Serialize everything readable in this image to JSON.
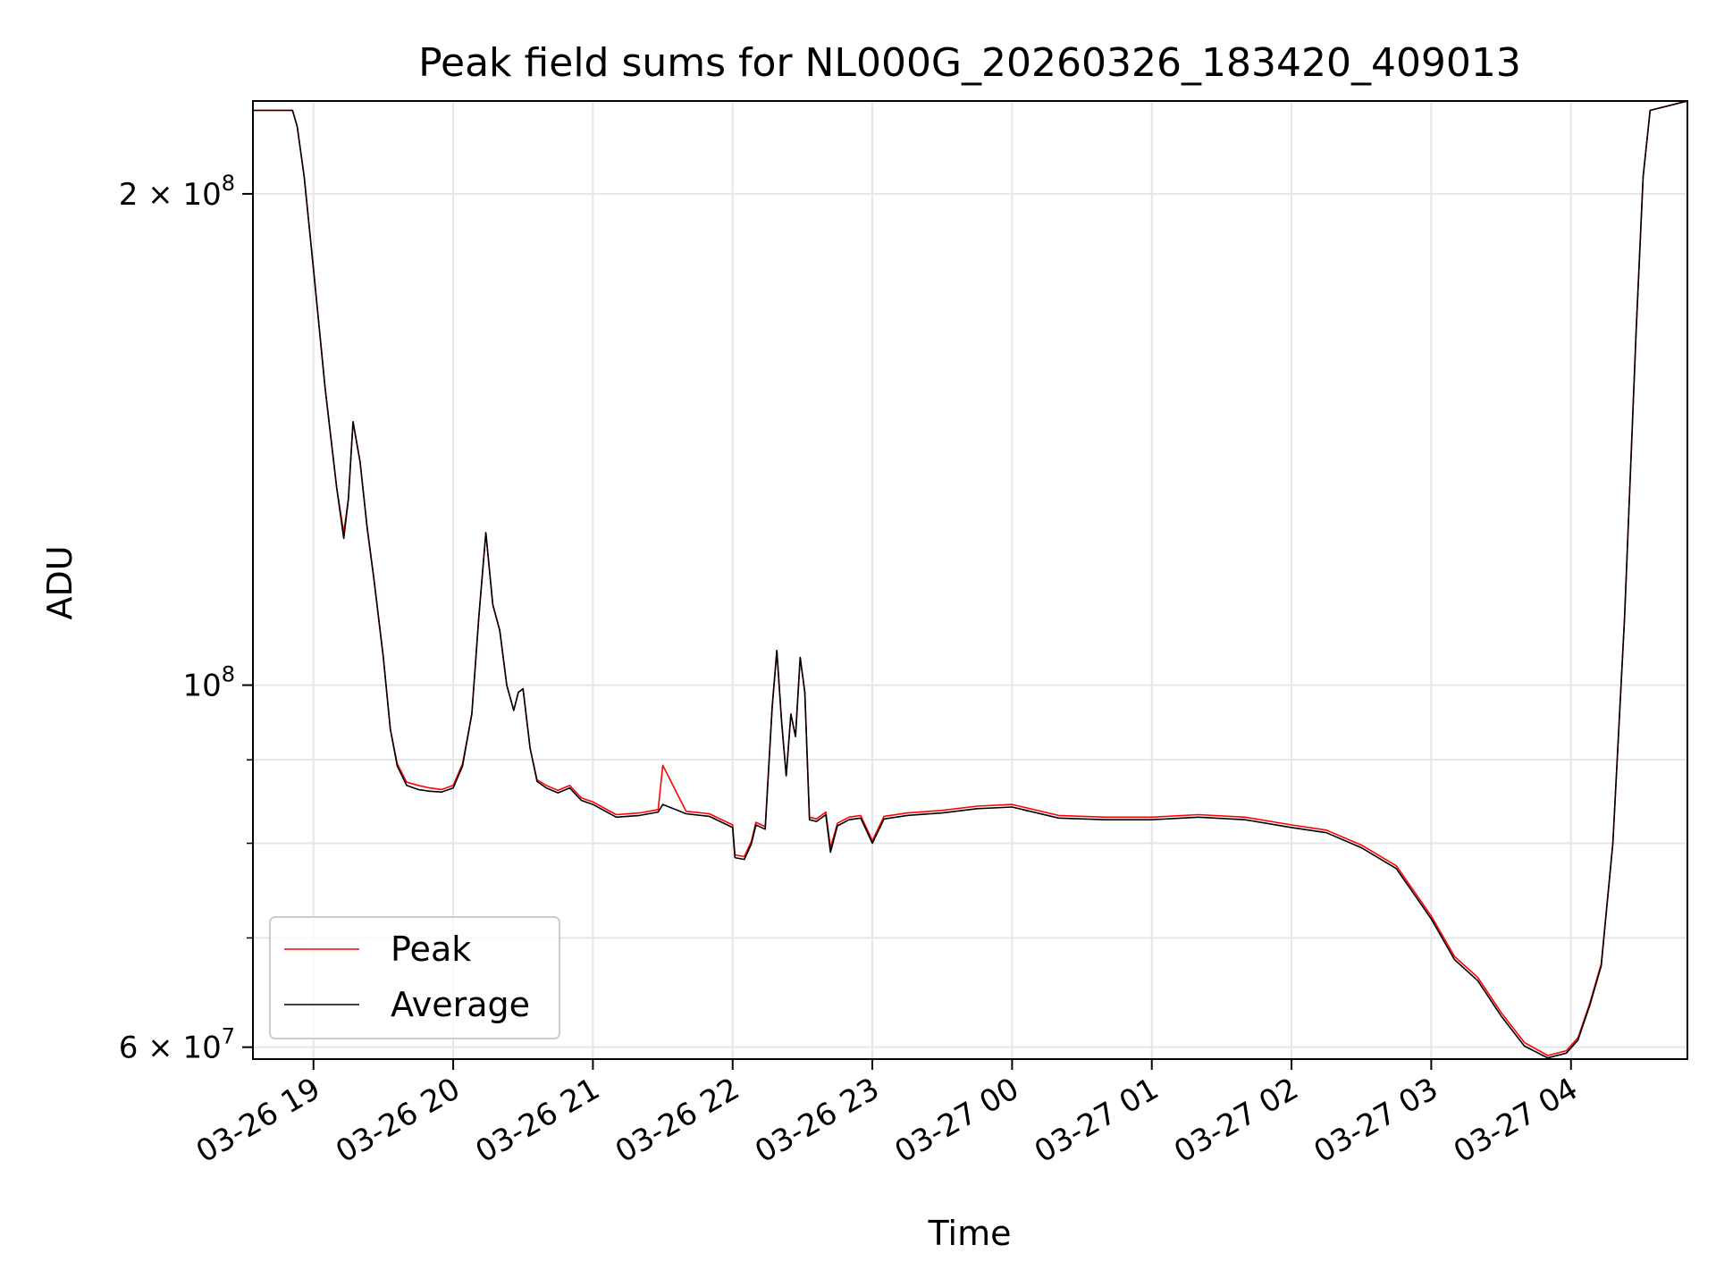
{
  "chart_data": {
    "type": "line",
    "title": "Peak field sums for NL000G_20260326_183420_409013",
    "xlabel": "Time",
    "ylabel": "ADU",
    "x_range": [
      "2026-03-26 18:34",
      "2026-03-27 04:50"
    ],
    "ylim": [
      59000000,
      228000000
    ],
    "y_scale": "log",
    "grid": true,
    "legend_position": "lower-left",
    "x_ticks": [
      "03-26 19",
      "03-26 20",
      "03-26 21",
      "03-26 22",
      "03-26 23",
      "03-27 00",
      "03-27 01",
      "03-27 02",
      "03-27 03",
      "03-27 04"
    ],
    "x_tick_values": [
      "2026-03-26 19:00",
      "2026-03-26 20:00",
      "2026-03-26 21:00",
      "2026-03-26 22:00",
      "2026-03-26 23:00",
      "2026-03-27 00:00",
      "2026-03-27 01:00",
      "2026-03-27 02:00",
      "2026-03-27 03:00",
      "2026-03-27 04:00"
    ],
    "y_major_ticks": [
      {
        "value": 60000000,
        "base": "6 × 10",
        "exp": "7"
      },
      {
        "value": 100000000,
        "base": "10",
        "exp": "8"
      },
      {
        "value": 200000000,
        "base": "2 × 10",
        "exp": "8"
      }
    ],
    "y_minor_grid": [
      70000000,
      80000000,
      90000000
    ],
    "x": [
      "2026-03-26 18:34",
      "2026-03-26 18:51",
      "2026-03-26 18:53",
      "2026-03-26 18:56",
      "2026-03-26 19:00",
      "2026-03-26 19:05",
      "2026-03-26 19:10",
      "2026-03-26 19:13",
      "2026-03-26 19:15",
      "2026-03-26 19:17",
      "2026-03-26 19:20",
      "2026-03-26 19:23",
      "2026-03-26 19:26",
      "2026-03-26 19:30",
      "2026-03-26 19:33",
      "2026-03-26 19:36",
      "2026-03-26 19:40",
      "2026-03-26 19:45",
      "2026-03-26 19:50",
      "2026-03-26 19:55",
      "2026-03-26 20:00",
      "2026-03-26 20:04",
      "2026-03-26 20:08",
      "2026-03-26 20:11",
      "2026-03-26 20:14",
      "2026-03-26 20:17",
      "2026-03-26 20:20",
      "2026-03-26 20:23",
      "2026-03-26 20:26",
      "2026-03-26 20:28",
      "2026-03-26 20:30",
      "2026-03-26 20:33",
      "2026-03-26 20:36",
      "2026-03-26 20:40",
      "2026-03-26 20:45",
      "2026-03-26 20:50",
      "2026-03-26 20:55",
      "2026-03-26 21:00",
      "2026-03-26 21:10",
      "2026-03-26 21:20",
      "2026-03-26 21:28",
      "2026-03-26 21:30",
      "2026-03-26 21:40",
      "2026-03-26 21:50",
      "2026-03-26 22:00",
      "2026-03-26 22:01",
      "2026-03-26 22:05",
      "2026-03-26 22:08",
      "2026-03-26 22:10",
      "2026-03-26 22:14",
      "2026-03-26 22:17",
      "2026-03-26 22:19",
      "2026-03-26 22:21",
      "2026-03-26 22:23",
      "2026-03-26 22:25",
      "2026-03-26 22:27",
      "2026-03-26 22:29",
      "2026-03-26 22:31",
      "2026-03-26 22:33",
      "2026-03-26 22:36",
      "2026-03-26 22:40",
      "2026-03-26 22:42",
      "2026-03-26 22:45",
      "2026-03-26 22:50",
      "2026-03-26 22:55",
      "2026-03-26 23:00",
      "2026-03-26 23:05",
      "2026-03-26 23:15",
      "2026-03-26 23:30",
      "2026-03-26 23:45",
      "2026-03-27 00:00",
      "2026-03-27 00:20",
      "2026-03-27 00:40",
      "2026-03-27 01:00",
      "2026-03-27 01:20",
      "2026-03-27 01:40",
      "2026-03-27 02:00",
      "2026-03-27 02:15",
      "2026-03-27 02:30",
      "2026-03-27 02:45",
      "2026-03-27 03:00",
      "2026-03-27 03:10",
      "2026-03-27 03:20",
      "2026-03-27 03:30",
      "2026-03-27 03:40",
      "2026-03-27 03:50",
      "2026-03-27 03:58",
      "2026-03-27 04:03",
      "2026-03-27 04:08",
      "2026-03-27 04:13",
      "2026-03-27 04:18",
      "2026-03-27 04:23",
      "2026-03-27 04:28",
      "2026-03-27 04:31",
      "2026-03-27 04:34",
      "2026-03-27 04:50"
    ],
    "series": [
      {
        "name": "Peak",
        "color": "#ff0000",
        "values": [
          225000000,
          225000000,
          220000000,
          205000000,
          180000000,
          152000000,
          132000000,
          124000000,
          130000000,
          145000000,
          137000000,
          125000000,
          116000000,
          104000000,
          94000000,
          89500000,
          87200000,
          86800000,
          86500000,
          86300000,
          86800000,
          89500000,
          96000000,
          110000000,
          124000000,
          112000000,
          108000000,
          100000000,
          96500000,
          99000000,
          99500000,
          91500000,
          87500000,
          86800000,
          86200000,
          86800000,
          85300000,
          84800000,
          83300000,
          83500000,
          83900000,
          89300000,
          83700000,
          83400000,
          82100000,
          78700000,
          78500000,
          80200000,
          82400000,
          81900000,
          97000000,
          105000000,
          95000000,
          88000000,
          96000000,
          93000000,
          104000000,
          99000000,
          83000000,
          82800000,
          83600000,
          79500000,
          82300000,
          83000000,
          83200000,
          80300000,
          83100000,
          83500000,
          83800000,
          84300000,
          84500000,
          83200000,
          83000000,
          83000000,
          83300000,
          83000000,
          82100000,
          81500000,
          79800000,
          77500000,
          72200000,
          68200000,
          66200000,
          63000000,
          60400000,
          59300000,
          59700000,
          60800000,
          63800000,
          67500000,
          80000000,
          110000000,
          165000000,
          205000000,
          225000000,
          228000000
        ]
      },
      {
        "name": "Average",
        "color": "#000000",
        "values": [
          225000000,
          225000000,
          220000000,
          205000000,
          180000000,
          152000000,
          132000000,
          123000000,
          130000000,
          145000000,
          137000000,
          125000000,
          116000000,
          104000000,
          94000000,
          89200000,
          86800000,
          86300000,
          86100000,
          86000000,
          86500000,
          89200000,
          96000000,
          110000000,
          124000000,
          112000000,
          108000000,
          100000000,
          96500000,
          99000000,
          99500000,
          91500000,
          87300000,
          86500000,
          85900000,
          86500000,
          85000000,
          84500000,
          83000000,
          83200000,
          83600000,
          84500000,
          83400000,
          83100000,
          81800000,
          78400000,
          78200000,
          79900000,
          82100000,
          81600000,
          97000000,
          105000000,
          95000000,
          88000000,
          96000000,
          93000000,
          104000000,
          99000000,
          82700000,
          82500000,
          83300000,
          79000000,
          82000000,
          82700000,
          82900000,
          80000000,
          82800000,
          83200000,
          83500000,
          84000000,
          84200000,
          82900000,
          82700000,
          82700000,
          83000000,
          82700000,
          81800000,
          81200000,
          79500000,
          77200000,
          71900000,
          67900000,
          65900000,
          62700000,
          60100000,
          59100000,
          59500000,
          60600000,
          63600000,
          67300000,
          80000000,
          110000000,
          165000000,
          205000000,
          225000000,
          228000000
        ]
      }
    ]
  }
}
